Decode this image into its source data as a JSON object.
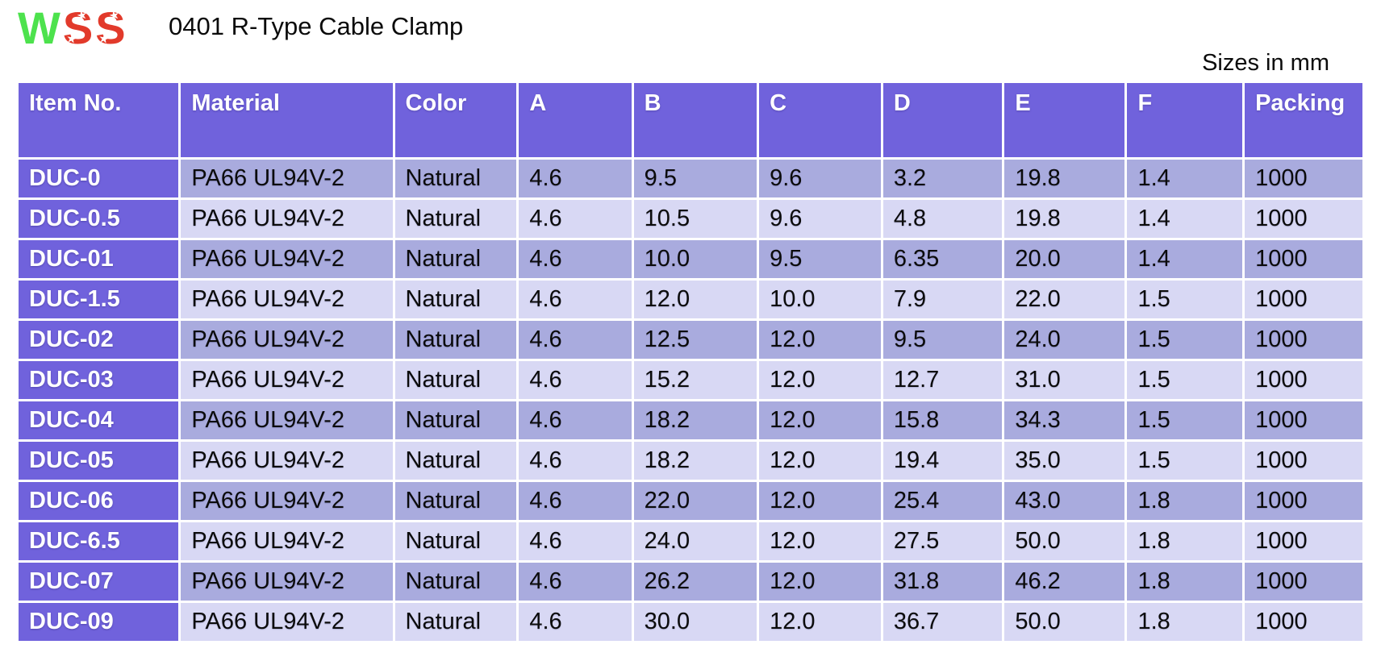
{
  "colors": {
    "header_purple": "#7062DC",
    "row_dark": "#A9ABDE",
    "row_light": "#D8D8F4",
    "logo_green": "#4DE24D",
    "logo_red": "#E23A2B",
    "text_dark": "#0B0B0B",
    "text_white": "#FFFFFF"
  },
  "header": {
    "logo": {
      "w": "W",
      "s1": "S",
      "s2": "S",
      "star": "★"
    },
    "title": "0401 R-Type Cable Clamp",
    "sizes_note": "Sizes in mm"
  },
  "table": {
    "columns": [
      "Item No.",
      "Material",
      "Color",
      "A",
      "B",
      "C",
      "D",
      "E",
      "F",
      "Packing"
    ],
    "rows": [
      [
        "DUC-0",
        "PA66 UL94V-2",
        "Natural",
        "4.6",
        "9.5",
        "9.6",
        "3.2",
        "19.8",
        "1.4",
        "1000"
      ],
      [
        "DUC-0.5",
        "PA66 UL94V-2",
        "Natural",
        "4.6",
        "10.5",
        "9.6",
        "4.8",
        "19.8",
        "1.4",
        "1000"
      ],
      [
        "DUC-01",
        "PA66 UL94V-2",
        "Natural",
        "4.6",
        "10.0",
        "9.5",
        "6.35",
        "20.0",
        "1.4",
        "1000"
      ],
      [
        "DUC-1.5",
        "PA66 UL94V-2",
        "Natural",
        "4.6",
        "12.0",
        "10.0",
        "7.9",
        "22.0",
        "1.5",
        "1000"
      ],
      [
        "DUC-02",
        "PA66 UL94V-2",
        "Natural",
        "4.6",
        "12.5",
        "12.0",
        "9.5",
        "24.0",
        "1.5",
        "1000"
      ],
      [
        "DUC-03",
        "PA66 UL94V-2",
        "Natural",
        "4.6",
        "15.2",
        "12.0",
        "12.7",
        "31.0",
        "1.5",
        "1000"
      ],
      [
        "DUC-04",
        "PA66 UL94V-2",
        "Natural",
        "4.6",
        "18.2",
        "12.0",
        "15.8",
        "34.3",
        "1.5",
        "1000"
      ],
      [
        "DUC-05",
        "PA66 UL94V-2",
        "Natural",
        "4.6",
        "18.2",
        "12.0",
        "19.4",
        "35.0",
        "1.5",
        "1000"
      ],
      [
        "DUC-06",
        "PA66 UL94V-2",
        "Natural",
        "4.6",
        "22.0",
        "12.0",
        "25.4",
        "43.0",
        "1.8",
        "1000"
      ],
      [
        "DUC-6.5",
        "PA66 UL94V-2",
        "Natural",
        "4.6",
        "24.0",
        "12.0",
        "27.5",
        "50.0",
        "1.8",
        "1000"
      ],
      [
        "DUC-07",
        "PA66 UL94V-2",
        "Natural",
        "4.6",
        "26.2",
        "12.0",
        "31.8",
        "46.2",
        "1.8",
        "1000"
      ],
      [
        "DUC-09",
        "PA66 UL94V-2",
        "Natural",
        "4.6",
        "30.0",
        "12.0",
        "36.7",
        "50.0",
        "1.8",
        "1000"
      ]
    ]
  }
}
